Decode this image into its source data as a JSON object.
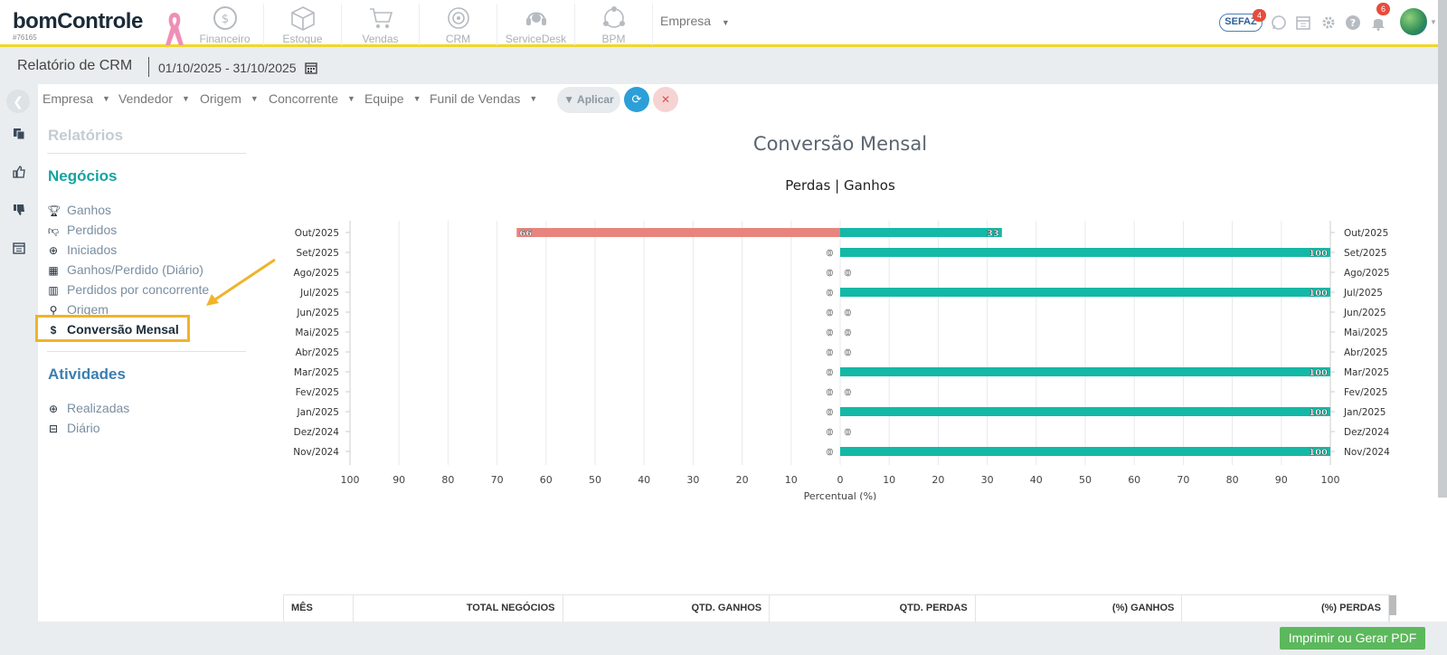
{
  "app": {
    "logo": "bomControle",
    "account": "#76165"
  },
  "modules": [
    {
      "label": "Financeiro",
      "icon": "coin-icon"
    },
    {
      "label": "Estoque",
      "icon": "box-icon"
    },
    {
      "label": "Vendas",
      "icon": "cart-icon"
    },
    {
      "label": "CRM",
      "icon": "target-icon"
    },
    {
      "label": "ServiceDesk",
      "icon": "headset-icon"
    },
    {
      "label": "BPM",
      "icon": "network-icon"
    }
  ],
  "top": {
    "empresa": "Empresa",
    "sefaz": "SEFAZ",
    "sefaz_badge": "4",
    "notif_badge": "6"
  },
  "subheader": {
    "title": "Relatório de CRM",
    "date_range": "01/10/2025 - 31/10/2025"
  },
  "filters": {
    "items": [
      "Empresa",
      "Vendedor",
      "Origem",
      "Concorrente",
      "Equipe",
      "Funil de Vendas"
    ],
    "apply": "Aplicar"
  },
  "menu": {
    "relatorios": "Relatórios",
    "negocios": "Negócios",
    "negocios_items": [
      {
        "label": "Ganhos",
        "icon": "trophy-icon"
      },
      {
        "label": "Perdidos",
        "icon": "thumbs-down-icon"
      },
      {
        "label": "Iniciados",
        "icon": "plus-circle-icon"
      },
      {
        "label": "Ganhos/Perdido (Diário)",
        "icon": "calendar-icon"
      },
      {
        "label": "Perdidos por concorrente",
        "icon": "building-icon"
      },
      {
        "label": "Origem",
        "icon": "map-marker-icon"
      },
      {
        "label": "Conversão Mensal",
        "icon": "dollar-icon"
      }
    ],
    "atividades": "Atividades",
    "atividades_items": [
      {
        "label": "Realizadas",
        "icon": "plus-circle-icon"
      },
      {
        "label": "Diário",
        "icon": "calendar-minus-icon"
      }
    ]
  },
  "chart_data": {
    "type": "bar",
    "orientation": "horizontal-diverging",
    "title": "Conversão Mensal",
    "subtitle": "Perdas | Ganhos",
    "xlabel": "Percentual (%)",
    "categories": [
      "Out/2025",
      "Set/2025",
      "Ago/2025",
      "Jul/2025",
      "Jun/2025",
      "Mai/2025",
      "Abr/2025",
      "Mar/2025",
      "Fev/2025",
      "Jan/2025",
      "Dez/2024",
      "Nov/2024"
    ],
    "series": [
      {
        "values": [
          66,
          0,
          0,
          0,
          0,
          0,
          0,
          0,
          0,
          0,
          0,
          0
        ],
        "color": "#e8847e",
        "side": "left"
      },
      {
        "values": [
          33,
          100,
          0,
          100,
          0,
          0,
          0,
          100,
          0,
          100,
          0,
          100
        ],
        "color": "#14b8a6",
        "side": "right"
      }
    ],
    "xlim": [
      -100,
      100
    ],
    "xticks": [
      "100",
      "90",
      "80",
      "70",
      "60",
      "50",
      "40",
      "30",
      "20",
      "10",
      "0",
      "10",
      "20",
      "30",
      "40",
      "50",
      "60",
      "70",
      "80",
      "90",
      "100"
    ],
    "grid": true
  },
  "table": {
    "headers": [
      "MÊS",
      "TOTAL NEGÓCIOS",
      "QTD. GANHOS",
      "QTD. PERDAS",
      "(%) GANHOS",
      "(%) PERDAS"
    ]
  },
  "print_button": "Imprimir ou Gerar PDF"
}
